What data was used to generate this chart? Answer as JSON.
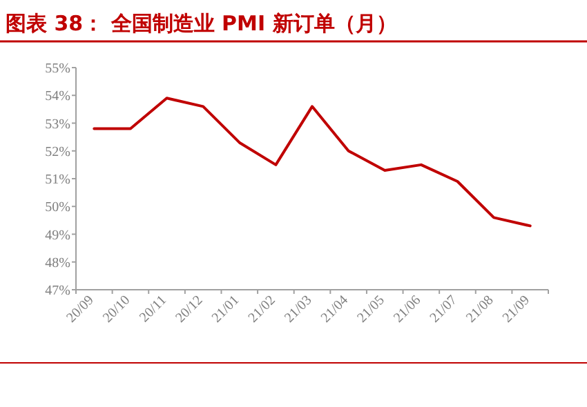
{
  "chart_data": {
    "type": "line",
    "title": "图表 38：  全国制造业 PMI 新订单（月）",
    "categories": [
      "20/09",
      "20/10",
      "20/11",
      "20/12",
      "21/01",
      "21/02",
      "21/03",
      "21/04",
      "21/05",
      "21/06",
      "21/07",
      "21/08",
      "21/09"
    ],
    "series": [
      {
        "color": "#c00000",
        "values": [
          52.8,
          52.8,
          53.9,
          53.6,
          52.3,
          51.5,
          53.6,
          52.0,
          51.3,
          51.5,
          50.9,
          49.6,
          49.3
        ]
      }
    ],
    "ylim": [
      47,
      55
    ],
    "yticks": [
      {
        "value": 47,
        "label": "47%"
      },
      {
        "value": 48,
        "label": "48%"
      },
      {
        "value": 49,
        "label": "49%"
      },
      {
        "value": 50,
        "label": "50%"
      },
      {
        "value": 51,
        "label": "51%"
      },
      {
        "value": 52,
        "label": "52%"
      },
      {
        "value": 53,
        "label": "53%"
      },
      {
        "value": 54,
        "label": "54%"
      },
      {
        "value": 55,
        "label": "55%"
      }
    ],
    "marker": "none",
    "line_style": "solid"
  }
}
